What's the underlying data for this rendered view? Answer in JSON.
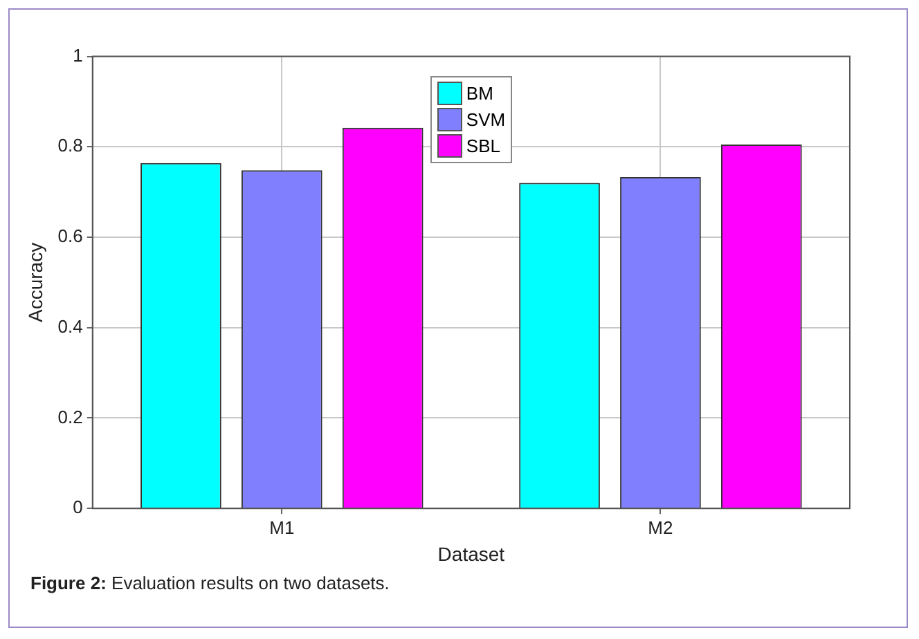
{
  "chart_data": {
    "type": "bar",
    "xlabel": "Dataset",
    "ylabel": "Accuracy",
    "categories": [
      "M1",
      "M2"
    ],
    "series": [
      {
        "name": "BM",
        "color": "#00ffff",
        "values": [
          0.764,
          0.72
        ]
      },
      {
        "name": "SVM",
        "color": "#8080ff",
        "values": [
          0.748,
          0.733
        ]
      },
      {
        "name": "SBL",
        "color": "#ff00ff",
        "values": [
          0.842,
          0.805
        ]
      }
    ],
    "ylim": [
      0,
      1
    ],
    "yticks": [
      0,
      0.2,
      0.4,
      0.6,
      0.8,
      1
    ],
    "grid": true,
    "legend": "top",
    "annotations": [
      "Figure 2: Evaluation results on two datasets."
    ]
  }
}
